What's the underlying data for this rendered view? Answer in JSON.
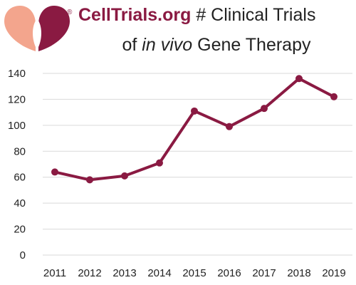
{
  "header": {
    "registered_mark": "®",
    "brand": "CellTrials.org",
    "title_rest": " # Clinical Trials",
    "line2_pre": "of ",
    "line2_italic": "in vivo",
    "line2_post": " Gene Therapy"
  },
  "colors": {
    "accent": "#8a1a42",
    "logo_light": "#f3a58d",
    "grid": "#d9d9d9",
    "text": "#222222"
  },
  "chart_data": {
    "type": "line",
    "title": "CellTrials.org # Clinical Trials of in vivo Gene Therapy",
    "categories": [
      "2011",
      "2012",
      "2013",
      "2014",
      "2015",
      "2016",
      "2017",
      "2018",
      "2019"
    ],
    "values": [
      64,
      58,
      61,
      71,
      111,
      99,
      113,
      136,
      122
    ],
    "ylim": [
      0,
      140
    ],
    "yticks": [
      "0",
      "20",
      "40",
      "60",
      "80",
      "100",
      "120",
      "140"
    ],
    "grid": true,
    "xlabel": "",
    "ylabel": ""
  }
}
